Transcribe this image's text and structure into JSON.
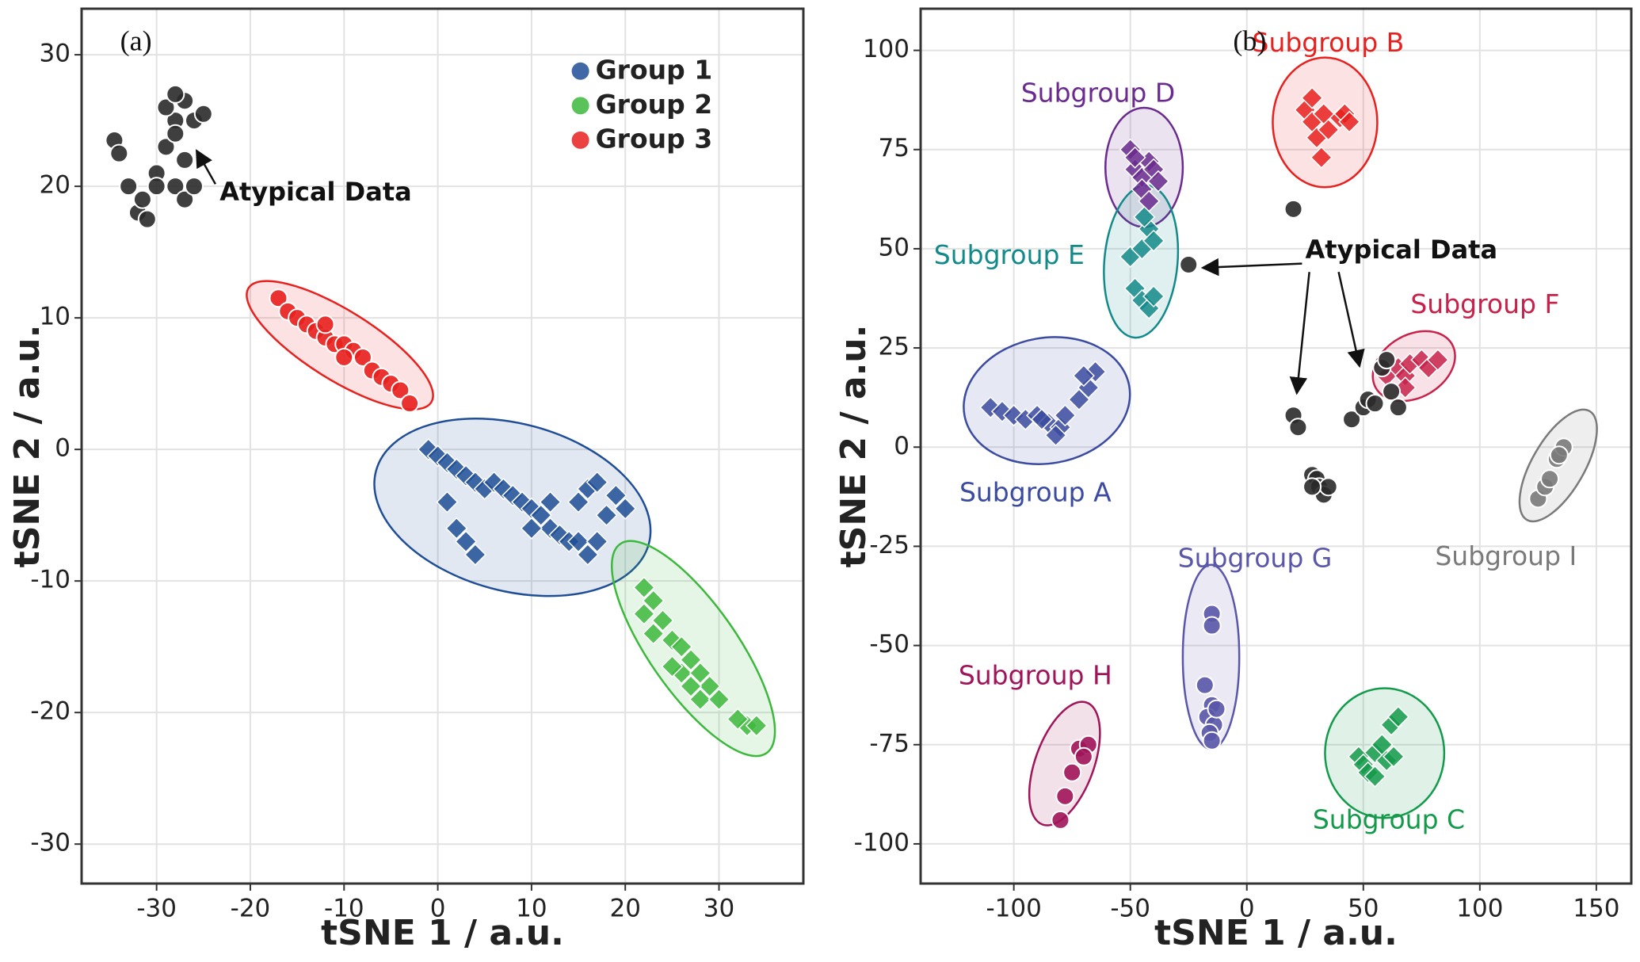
{
  "chart_data": [
    {
      "type": "scatter",
      "panel_label": "(a)",
      "xlabel": "tSNE 1 / a.u.",
      "ylabel": "tSNE 2 / a.u.",
      "xlim": [
        -38,
        39
      ],
      "ylim": [
        -33,
        33.5
      ],
      "xticks": [
        -30,
        -20,
        -10,
        0,
        10,
        20,
        30
      ],
      "yticks": [
        -30,
        -20,
        -10,
        0,
        10,
        20,
        30
      ],
      "grid": true,
      "legend": "upper right",
      "annotations": [
        "Atypical Data"
      ],
      "series": [
        {
          "name": "Group 1",
          "color": "#1f4e96",
          "marker": "diamond",
          "x": [
            -1,
            0,
            1,
            2,
            3,
            4,
            5,
            6,
            7,
            8,
            9,
            10,
            11,
            12,
            13,
            14,
            15,
            16,
            17,
            18,
            19,
            20,
            16,
            17,
            1,
            2,
            3,
            4,
            10,
            12,
            15
          ],
          "y": [
            0,
            -0.5,
            -1,
            -1.5,
            -2,
            -2.5,
            -3,
            -2.5,
            -3,
            -3.5,
            -4,
            -4.5,
            -5,
            -6,
            -6.5,
            -7,
            -7,
            -8,
            -7,
            -5,
            -3.5,
            -4.5,
            -3,
            -2.5,
            -4,
            -6,
            -7,
            -8,
            -6,
            -4,
            -4
          ]
        },
        {
          "name": "Group 2",
          "color": "#3cb83c",
          "marker": "diamond",
          "x": [
            22,
            23,
            22,
            24,
            23,
            25,
            26,
            27,
            26,
            28,
            29,
            28,
            30,
            33,
            34,
            32,
            25,
            27
          ],
          "y": [
            -10.5,
            -11.5,
            -12.5,
            -13,
            -14,
            -14.5,
            -15,
            -16,
            -17,
            -17,
            -18,
            -19,
            -19,
            -21,
            -21,
            -20.5,
            -16.5,
            -18
          ]
        },
        {
          "name": "Group 3",
          "color": "#e8201e",
          "marker": "circle",
          "x": [
            -17,
            -16,
            -15,
            -14,
            -13,
            -12,
            -11,
            -10,
            -9,
            -8,
            -7,
            -6,
            -5,
            -4,
            -3,
            -12,
            -10
          ],
          "y": [
            11.5,
            10.5,
            10,
            9.5,
            9,
            8.5,
            8,
            8,
            7.5,
            7,
            6,
            5.5,
            5,
            4.5,
            3.5,
            9.5,
            7
          ]
        },
        {
          "color": "#2a2a2a",
          "marker": "circle",
          "x": [
            -34.5,
            -34,
            -33,
            -32,
            -31.5,
            -30,
            -29,
            -28,
            -27,
            -26,
            -28,
            -29,
            -27,
            -28,
            -27,
            -26,
            -30,
            -31,
            -28,
            -25
          ],
          "y": [
            23.5,
            22.5,
            20,
            18,
            19,
            21,
            23,
            25,
            26.5,
            25,
            24,
            26,
            22,
            20,
            19,
            20,
            20,
            17.5,
            27,
            25.5
          ]
        }
      ]
    },
    {
      "type": "scatter",
      "panel_label": "(b)",
      "xlabel": "tSNE 1 / a.u.",
      "ylabel": "tSNE 2 / a.u.",
      "xlim": [
        -140,
        165
      ],
      "ylim": [
        -110,
        110.5
      ],
      "xticks": [
        -100,
        -50,
        0,
        50,
        100,
        150
      ],
      "yticks": [
        -100,
        -75,
        -50,
        -25,
        0,
        25,
        50,
        75,
        100
      ],
      "grid": true,
      "annotations": [
        "Atypical Data"
      ],
      "series": [
        {
          "name": "Subgroup A",
          "color": "#3b4ba0",
          "marker": "diamond",
          "x": [
            -110,
            -105,
            -100,
            -95,
            -90,
            -85,
            -80,
            -82,
            -78,
            -72,
            -68,
            -65,
            -70,
            -88
          ],
          "y": [
            10,
            9,
            8,
            7,
            8,
            6,
            5,
            3,
            8,
            12,
            15,
            19,
            18,
            7
          ]
        },
        {
          "name": "Subgroup B",
          "color": "#e8201e",
          "marker": "diamond",
          "x": [
            25,
            28,
            30,
            32,
            35,
            40,
            42,
            44,
            28,
            33
          ],
          "y": [
            85,
            82,
            78,
            73,
            80,
            83,
            84,
            82,
            88,
            84
          ]
        },
        {
          "name": "Subgroup C",
          "color": "#139a4a",
          "marker": "diamond",
          "x": [
            48,
            50,
            52,
            55,
            58,
            60,
            62,
            65,
            63,
            55
          ],
          "y": [
            -78,
            -80,
            -82,
            -77,
            -75,
            -79,
            -70,
            -68,
            -78,
            -83
          ]
        },
        {
          "name": "Subgroup D",
          "color": "#6a2a8e",
          "marker": "diamond",
          "x": [
            -50,
            -48,
            -45,
            -42,
            -40,
            -45,
            -42,
            -48,
            -38
          ],
          "y": [
            75,
            70,
            68,
            72,
            70,
            65,
            62,
            73,
            67
          ]
        },
        {
          "name": "Subgroup E",
          "color": "#138a8a",
          "marker": "diamond",
          "x": [
            -50,
            -45,
            -42,
            -40,
            -48,
            -45,
            -42,
            -40,
            -44
          ],
          "y": [
            48,
            50,
            55,
            52,
            40,
            37,
            35,
            38,
            58
          ]
        },
        {
          "name": "Subgroup F",
          "color": "#c8224a",
          "marker": "diamond",
          "x": [
            60,
            65,
            68,
            70,
            75,
            78,
            82,
            68
          ],
          "y": [
            18,
            20,
            18,
            21,
            22,
            20,
            22,
            15
          ]
        },
        {
          "name": "Subgroup G",
          "color": "#5a56a8",
          "marker": "circle",
          "x": [
            -15,
            -15,
            -18,
            -15,
            -17,
            -14,
            -16,
            -15,
            -13
          ],
          "y": [
            -42,
            -45,
            -60,
            -65,
            -68,
            -70,
            -72,
            -74,
            -66
          ]
        },
        {
          "name": "Subgroup H",
          "color": "#a0145a",
          "marker": "circle",
          "x": [
            -80,
            -78,
            -75,
            -72,
            -68,
            -70
          ],
          "y": [
            -94,
            -88,
            -82,
            -76,
            -75,
            -78
          ]
        },
        {
          "name": "Subgroup I",
          "color": "#7a7a7a",
          "marker": "circle",
          "x": [
            125,
            128,
            130,
            133,
            136,
            134
          ],
          "y": [
            -13,
            -10,
            -8,
            -3,
            0,
            -2
          ]
        },
        {
          "color": "#2a2a2a",
          "marker": "circle",
          "x": [
            20,
            -25,
            20,
            22,
            28,
            30,
            31,
            33,
            35,
            28,
            45,
            50,
            52,
            55,
            58,
            60,
            62,
            65
          ],
          "y": [
            60,
            46,
            8,
            5,
            -7,
            -8,
            -10,
            -12,
            -10,
            -10,
            7,
            10,
            12,
            11,
            20,
            22,
            14,
            10
          ]
        }
      ]
    }
  ]
}
